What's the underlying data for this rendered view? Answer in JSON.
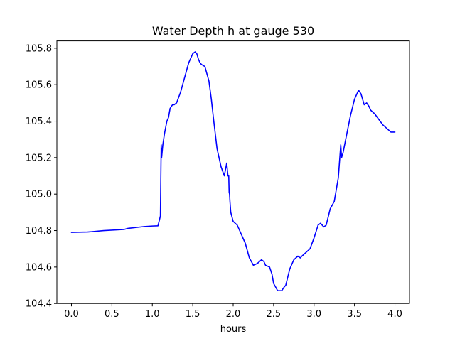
{
  "chart_data": {
    "type": "line",
    "title": "Water Depth h at gauge 530",
    "xlabel": "hours",
    "ylabel": "",
    "xlim": [
      -0.18,
      4.18
    ],
    "ylim": [
      104.4,
      105.84
    ],
    "xticks": [
      0.0,
      0.5,
      1.0,
      1.5,
      2.0,
      2.5,
      3.0,
      3.5,
      4.0
    ],
    "xtick_labels": [
      "0.0",
      "0.5",
      "1.0",
      "1.5",
      "2.0",
      "2.5",
      "3.0",
      "3.5",
      "4.0"
    ],
    "yticks": [
      104.4,
      104.6,
      104.8,
      105.0,
      105.2,
      105.4,
      105.6,
      105.8
    ],
    "ytick_labels": [
      "104.4",
      "104.6",
      "104.8",
      "105.0",
      "105.2",
      "105.4",
      "105.6",
      "105.8"
    ],
    "grid": false,
    "series": [
      {
        "name": "",
        "color": "#0000ff",
        "x": [
          0.0,
          0.2,
          0.4,
          0.65,
          0.7,
          0.9,
          1.0,
          1.07,
          1.1,
          1.11,
          1.115,
          1.13,
          1.15,
          1.18,
          1.2,
          1.22,
          1.25,
          1.27,
          1.3,
          1.35,
          1.4,
          1.45,
          1.5,
          1.53,
          1.55,
          1.57,
          1.59,
          1.61,
          1.65,
          1.7,
          1.73,
          1.76,
          1.8,
          1.85,
          1.89,
          1.92,
          1.935,
          1.945,
          1.95,
          1.955,
          1.96,
          1.97,
          2.0,
          2.05,
          2.1,
          2.15,
          2.2,
          2.25,
          2.3,
          2.35,
          2.38,
          2.4,
          2.45,
          2.48,
          2.5,
          2.55,
          2.6,
          2.63,
          2.65,
          2.7,
          2.75,
          2.8,
          2.83,
          2.85,
          2.9,
          2.95,
          3.0,
          3.05,
          3.08,
          3.1,
          3.12,
          3.15,
          3.2,
          3.25,
          3.3,
          3.33,
          3.34,
          3.36,
          3.4,
          3.45,
          3.5,
          3.55,
          3.58,
          3.6,
          3.62,
          3.65,
          3.68,
          3.7,
          3.75,
          3.8,
          3.85,
          3.9,
          3.95,
          4.0
        ],
        "y": [
          104.79,
          104.792,
          104.8,
          104.806,
          104.812,
          104.822,
          104.825,
          104.826,
          104.88,
          105.27,
          105.2,
          105.27,
          105.33,
          105.4,
          105.42,
          105.47,
          105.49,
          105.49,
          105.5,
          105.56,
          105.64,
          105.72,
          105.77,
          105.78,
          105.77,
          105.74,
          105.72,
          105.71,
          105.7,
          105.62,
          105.52,
          105.4,
          105.25,
          105.15,
          105.1,
          105.17,
          105.1,
          105.1,
          105.01,
          105.0,
          104.96,
          104.9,
          104.85,
          104.83,
          104.78,
          104.73,
          104.65,
          104.61,
          104.62,
          104.64,
          104.63,
          104.61,
          104.6,
          104.56,
          104.51,
          104.47,
          104.47,
          104.49,
          104.5,
          104.59,
          104.64,
          104.66,
          104.65,
          104.66,
          104.68,
          104.7,
          104.76,
          104.83,
          104.84,
          104.83,
          104.82,
          104.83,
          104.92,
          104.96,
          105.09,
          105.27,
          105.2,
          105.23,
          105.32,
          105.43,
          105.52,
          105.57,
          105.55,
          105.52,
          105.49,
          105.5,
          105.48,
          105.46,
          105.44,
          105.41,
          105.38,
          105.36,
          105.34,
          105.34
        ]
      }
    ]
  }
}
